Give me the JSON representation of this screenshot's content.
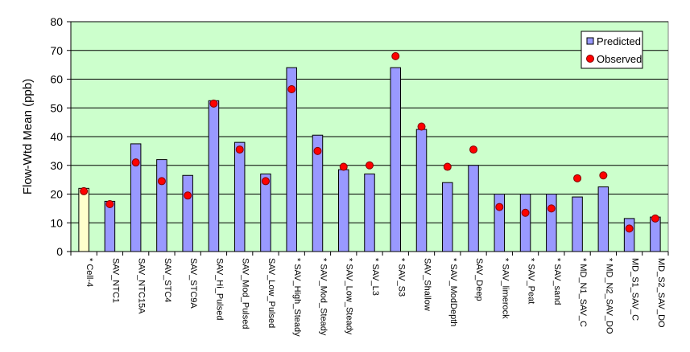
{
  "chart_data": {
    "type": "bar",
    "title": "",
    "xlabel": "",
    "ylabel": "Flow-Wtd Mean (ppb)",
    "ylim": [
      0,
      80
    ],
    "yticks": [
      "0",
      "10",
      "20",
      "30",
      "40",
      "50",
      "60",
      "70",
      "80"
    ],
    "grid": true,
    "legend_position": "top-right",
    "colors": {
      "plot_background": "#ccffcc",
      "bar": "#9999ff",
      "bar_highlight": "#ffffcc",
      "bar_outline": "#000000",
      "marker": "#ff0000",
      "marker_outline": "#800000"
    },
    "categories": [
      "* Cell-4",
      "SAV_NTC1",
      "SAV_NTC15A",
      "SAV_STC4",
      "SAV_STC9A",
      "SAV_Hi_Pulsed",
      "SAV_Mod_Pulsed",
      "SAV_Low_Pulsed",
      "* SAV_High_Steady",
      "* SAV_Mod_Steady",
      "* SAV_Low_Steady",
      "* SAV_L3",
      "* SAV_S3",
      "SAV_Shallow",
      "* SAV_ModDepth",
      "SAV_Deep",
      "* SAV_limerock",
      "* SAV_Peat",
      "* SAV_sand",
      "* MD_N1_SAV_C",
      "* MD_N2_SAV_DO",
      "MD_S1_SAV_C",
      "MD_S2_SAV_DO"
    ],
    "series": [
      {
        "name": "Predicted",
        "kind": "bar",
        "values": [
          22,
          17.5,
          37.5,
          32,
          26.5,
          52.5,
          38,
          27,
          64,
          40.5,
          28.5,
          27,
          64,
          42.5,
          24,
          30,
          20,
          20,
          20,
          19,
          22.5,
          11.5,
          12
        ]
      },
      {
        "name": "Observed",
        "kind": "scatter",
        "values": [
          21,
          16.5,
          31,
          24.5,
          19.5,
          51.5,
          35.5,
          24.5,
          56.5,
          35,
          29.5,
          30,
          68,
          43.5,
          29.5,
          35.5,
          15.5,
          13.5,
          15,
          25.5,
          26.5,
          8,
          11.5
        ]
      }
    ],
    "highlight_index": 0
  }
}
